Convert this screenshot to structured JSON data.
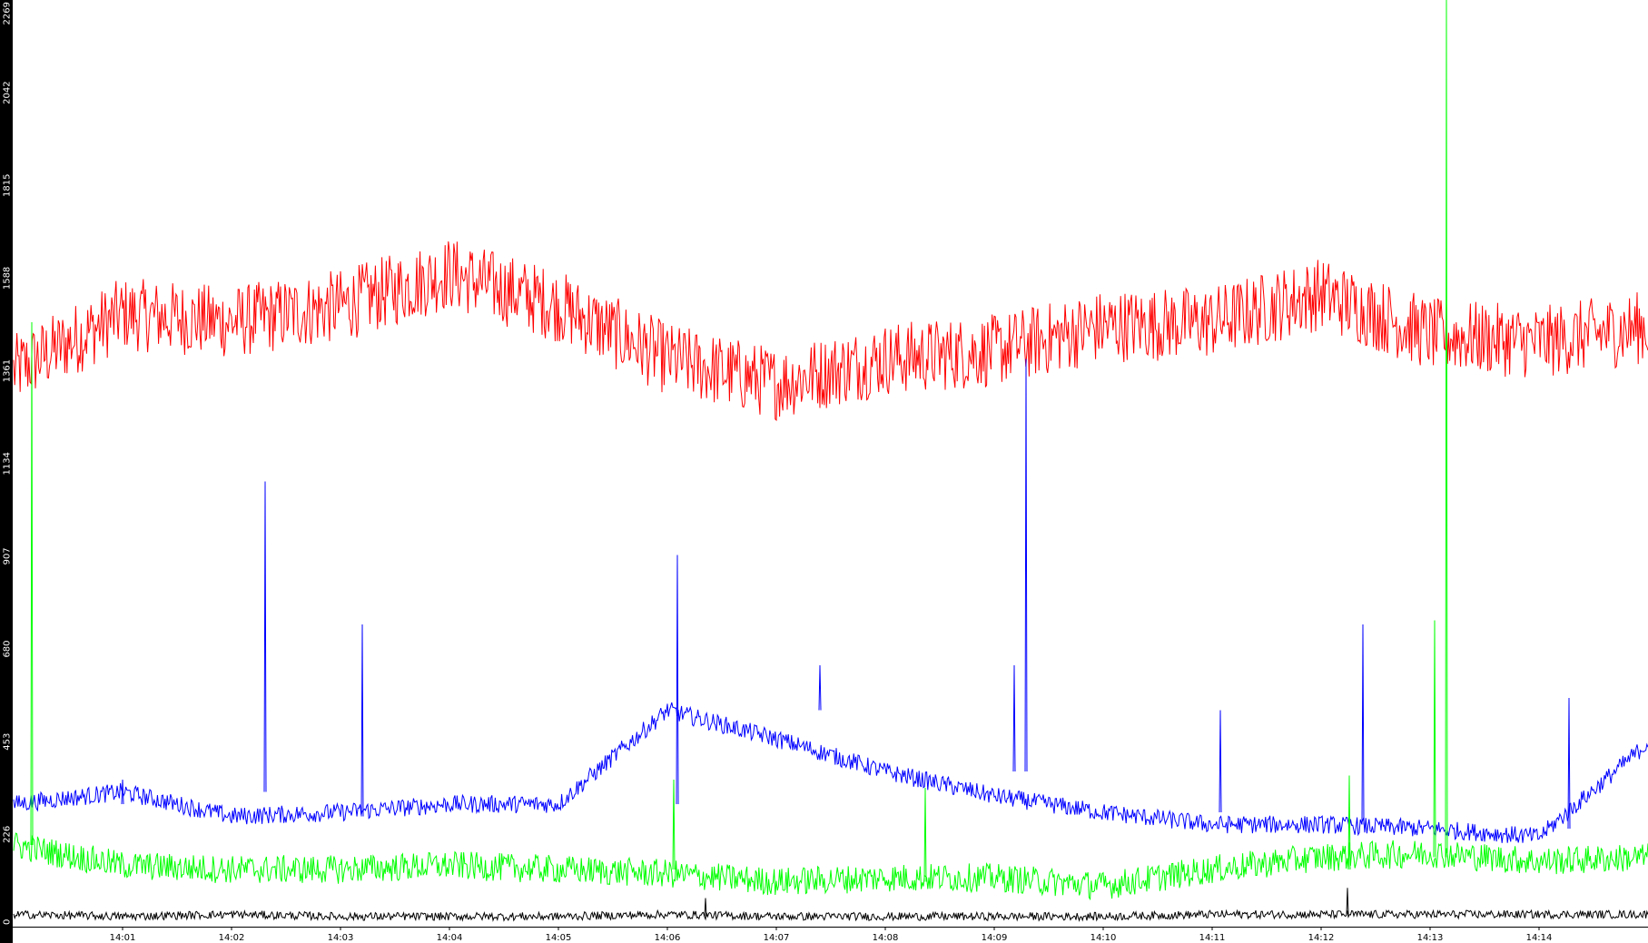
{
  "chart_data": {
    "type": "line",
    "title": "",
    "xlabel": "",
    "ylabel": "",
    "xlim": [
      "14:00",
      "14:15"
    ],
    "ylim": [
      0,
      2269
    ],
    "grid": false,
    "legend": "none",
    "y_ticks": [
      "0",
      "226",
      "453",
      "680",
      "907",
      "1134",
      "1361",
      "1588",
      "1815",
      "2042",
      "2269"
    ],
    "x_ticks": [
      "14:01",
      "14:02",
      "14:03",
      "14:04",
      "14:05",
      "14:06",
      "14:07",
      "14:08",
      "14:09",
      "14:10",
      "14:11",
      "14:12",
      "14:13",
      "14:14"
    ],
    "x": [
      "14:00",
      "14:01",
      "14:02",
      "14:03",
      "14:04",
      "14:05",
      "14:06",
      "14:07",
      "14:08",
      "14:09",
      "14:10",
      "14:11",
      "14:12",
      "14:13",
      "14:14",
      "14:15"
    ],
    "series": [
      {
        "color": "#ff0000",
        "values": [
          1360,
          1500,
          1480,
          1520,
          1600,
          1520,
          1390,
          1330,
          1390,
          1410,
          1470,
          1480,
          1550,
          1450,
          1430,
          1470
        ]
      },
      {
        "color": "#0000ff",
        "values": [
          300,
          330,
          270,
          280,
          300,
          300,
          530,
          460,
          380,
          320,
          280,
          250,
          250,
          240,
          220,
          450
        ]
      },
      {
        "color": "#00ff00",
        "values": [
          200,
          150,
          140,
          140,
          150,
          140,
          130,
          110,
          120,
          120,
          100,
          140,
          170,
          180,
          160,
          170
        ]
      },
      {
        "color": "#000000",
        "values": [
          30,
          25,
          30,
          25,
          25,
          25,
          30,
          25,
          25,
          25,
          25,
          30,
          30,
          30,
          30,
          30
        ]
      }
    ],
    "spikes": [
      {
        "series": 1,
        "x": "14:01",
        "value": 360
      },
      {
        "series": 1,
        "x": "14:02",
        "value": 1090
      },
      {
        "series": 1,
        "x": "14:03",
        "value": 740
      },
      {
        "series": 1,
        "x": "14:06",
        "value": 910
      },
      {
        "series": 1,
        "x": "14:07",
        "value": 640
      },
      {
        "series": 1,
        "x": "14:09",
        "value": 1390
      },
      {
        "series": 1,
        "x": "14:09",
        "value": 640
      },
      {
        "series": 1,
        "x": "14:11",
        "value": 530
      },
      {
        "series": 1,
        "x": "14:12",
        "value": 740
      },
      {
        "series": 1,
        "x": "14:14",
        "value": 560
      },
      {
        "series": 2,
        "x": "14:00",
        "value": 1480
      },
      {
        "series": 2,
        "x": "14:06",
        "value": 360
      },
      {
        "series": 2,
        "x": "14:08",
        "value": 340
      },
      {
        "series": 2,
        "x": "14:12",
        "value": 370
      },
      {
        "series": 2,
        "x": "14:13",
        "value": 2269
      },
      {
        "series": 2,
        "x": "14:13",
        "value": 750
      },
      {
        "series": 3,
        "x": "14:06",
        "value": 70
      },
      {
        "series": 3,
        "x": "14:12",
        "value": 95
      }
    ]
  }
}
